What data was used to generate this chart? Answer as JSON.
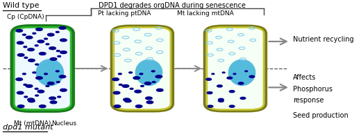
{
  "fig_width": 5.2,
  "fig_height": 1.98,
  "dpi": 100,
  "bg_color": "#ffffff",
  "title_wild": "Wild type",
  "title_dpd1": "dpd1 mutant",
  "top_label": "DPD1 degrades orgDNA during senescence",
  "label_cp": "Cp (CpDNA)",
  "label_pt": "Pt lacking ptDNA",
  "label_mt_top": "Mt lacking mtDNA",
  "label_mt_bottom": "Mt (mtDNA)",
  "label_nucleus": "Nucleus",
  "right_label1": "Nutrient recycling",
  "right_label2": "Affects",
  "right_label3": "Phosphorus",
  "right_label4": "response",
  "right_label5": "Seed production",
  "cell1_border": "#1a7a1a",
  "cell1_border2": "#2db82d",
  "cell23_border_outer": "#7a7a18",
  "cell23_border_inner": "#c8c830",
  "cell1_fill": "#eef8ff",
  "cell23_fill": "#f5fff5",
  "nucleus_color": "#55bbdd",
  "dot_large_color": "#00008b",
  "dot_small_color": "#00008b",
  "dot_empty_color": "#88ccee",
  "dashed_line_y": 0.5,
  "arrow_color": "#888888",
  "brace_color": "#444444"
}
